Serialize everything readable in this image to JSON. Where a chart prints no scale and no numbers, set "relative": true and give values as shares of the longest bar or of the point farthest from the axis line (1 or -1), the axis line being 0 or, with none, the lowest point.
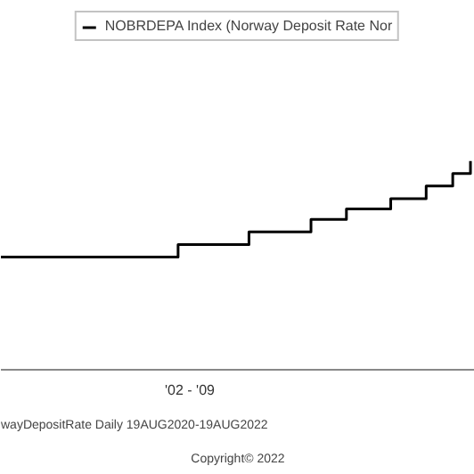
{
  "chart_data": {
    "type": "step",
    "relative": true,
    "categories": [
      null,
      null,
      null,
      null,
      null,
      null,
      null,
      null,
      null,
      null,
      null,
      null,
      null,
      null,
      null,
      null,
      null,
      null,
      null,
      null,
      null,
      null,
      null,
      null,
      null,
      null,
      null,
      null,
      null,
      null,
      null,
      null,
      null,
      null,
      null,
      null,
      null,
      null,
      null,
      null,
      null,
      null,
      null,
      null,
      null,
      null,
      null,
      null,
      null,
      null,
      null,
      null,
      null,
      null
    ],
    "series": [
      {
        "name": "NOBRDEPA Index (Norway Deposit Rate Nor",
        "color": "#000000",
        "values": [
          0.54,
          0.54,
          0.54,
          0.54,
          0.54,
          0.54,
          0.54,
          0.54,
          0.54,
          0.54,
          0.54,
          0.54,
          0.54,
          0.54,
          0.54,
          0.54,
          0.54,
          0.54,
          0.54,
          0.54,
          0.6,
          0.6,
          0.6,
          0.6,
          0.6,
          0.6,
          0.6,
          0.6,
          0.66,
          0.66,
          0.66,
          0.66,
          0.66,
          0.66,
          0.66,
          0.72,
          0.72,
          0.72,
          0.72,
          0.77,
          0.77,
          0.77,
          0.77,
          0.77,
          0.82,
          0.82,
          0.82,
          0.82,
          0.88,
          0.88,
          0.88,
          0.94,
          0.94,
          1
        ]
      }
    ],
    "legend": "top",
    "grid": false,
    "annotations": [
      "'02 - '09",
      "wayDepositRate  Daily 19AUG2020-19AUG2022",
      "Copyright© 2022"
    ]
  }
}
